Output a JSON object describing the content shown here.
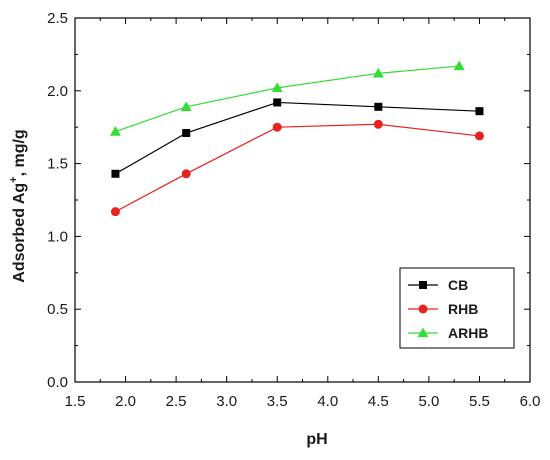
{
  "chart_data": {
    "type": "line",
    "xlabel": "pH",
    "ylabel_main": "Adsorbed Ag",
    "ylabel_sup": "+",
    "ylabel_unit": ", mg/g",
    "xlim": [
      1.5,
      6.0
    ],
    "ylim": [
      0.0,
      2.5
    ],
    "x_ticks": [
      "1.5",
      "2.0",
      "2.5",
      "3.0",
      "3.5",
      "4.0",
      "4.5",
      "5.0",
      "5.5",
      "6.0"
    ],
    "y_ticks": [
      "0.0",
      "0.5",
      "1.0",
      "1.5",
      "2.0",
      "2.5"
    ],
    "grid": false,
    "legend_position": "bottom-right",
    "series": [
      {
        "name": "CB",
        "color": "#000000",
        "marker": "square",
        "x": [
          1.9,
          2.6,
          3.5,
          4.5,
          5.5
        ],
        "y": [
          1.43,
          1.71,
          1.92,
          1.89,
          1.86
        ]
      },
      {
        "name": "RHB",
        "color": "#e8231f",
        "marker": "circle",
        "x": [
          1.9,
          2.6,
          3.5,
          4.5,
          5.5
        ],
        "y": [
          1.17,
          1.43,
          1.75,
          1.77,
          1.69
        ]
      },
      {
        "name": "ARHB",
        "color": "#33dd33",
        "marker": "triangle",
        "x": [
          1.9,
          2.6,
          3.5,
          4.5,
          5.3
        ],
        "y": [
          1.72,
          1.89,
          2.02,
          2.12,
          2.17
        ]
      }
    ]
  }
}
